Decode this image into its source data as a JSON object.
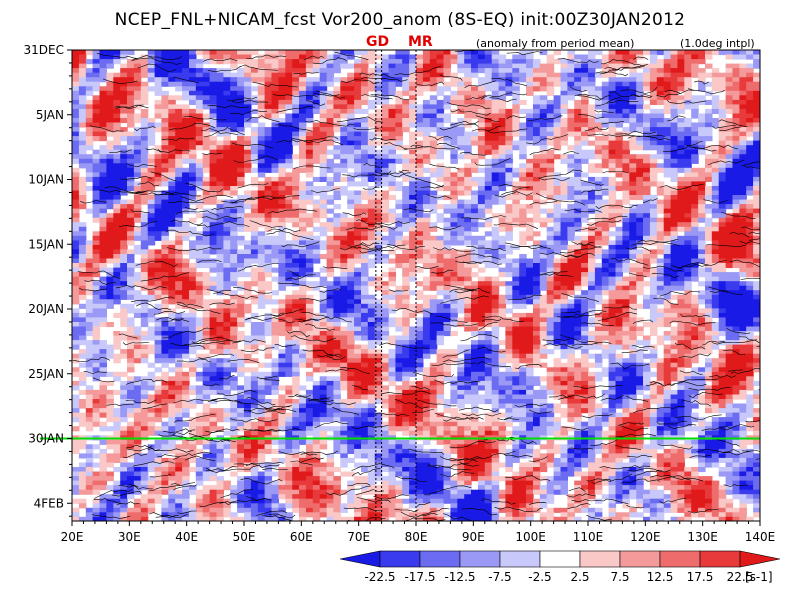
{
  "title": "NCEP_FNL+NICAM_fcst Vor200_anom (8S-EQ) init:00Z30JAN2012",
  "subtitle_left": "(anomaly from period mean)",
  "subtitle_right": "(1.0deg intpl)",
  "markers": [
    {
      "label": "GD",
      "lon": 74
    },
    {
      "label": "MR",
      "lon": 80
    }
  ],
  "chart_data": {
    "type": "heatmap",
    "title": "NCEP_FNL+NICAM_fcst Vor200_anom (8S-EQ) init:00Z30JAN2012",
    "xlabel": "",
    "ylabel": "",
    "x_axis": {
      "range": [
        20,
        140
      ],
      "ticks": [
        "20E",
        "30E",
        "40E",
        "50E",
        "60E",
        "70E",
        "80E",
        "90E",
        "100E",
        "110E",
        "120E",
        "130E",
        "140E"
      ]
    },
    "y_axis": {
      "range": [
        "31DEC2011",
        "07FEB2012"
      ],
      "direction": "time increases downward",
      "ticks": [
        "31DEC",
        "5JAN",
        "10JAN",
        "15JAN",
        "20JAN",
        "25JAN",
        "30JAN",
        "4FEB"
      ]
    },
    "init_line": {
      "date": "30JAN",
      "color": "#00dd00"
    },
    "vertical_lines_lon": [
      73,
      74,
      80
    ],
    "colorbar": {
      "levels": [
        "-22.5",
        "-17.5",
        "-12.5",
        "-7.5",
        "-2.5",
        "2.5",
        "7.5",
        "12.5",
        "17.5",
        "22.5"
      ],
      "unit": "[s-1]",
      "colors": [
        "#1a1ae6",
        "#3a3aee",
        "#6c6cf2",
        "#9a9af6",
        "#c8c8fb",
        "#ffffff",
        "#fbc8c8",
        "#f49a9a",
        "#ef6c6c",
        "#e83a3a",
        "#e01a1a"
      ]
    }
  }
}
